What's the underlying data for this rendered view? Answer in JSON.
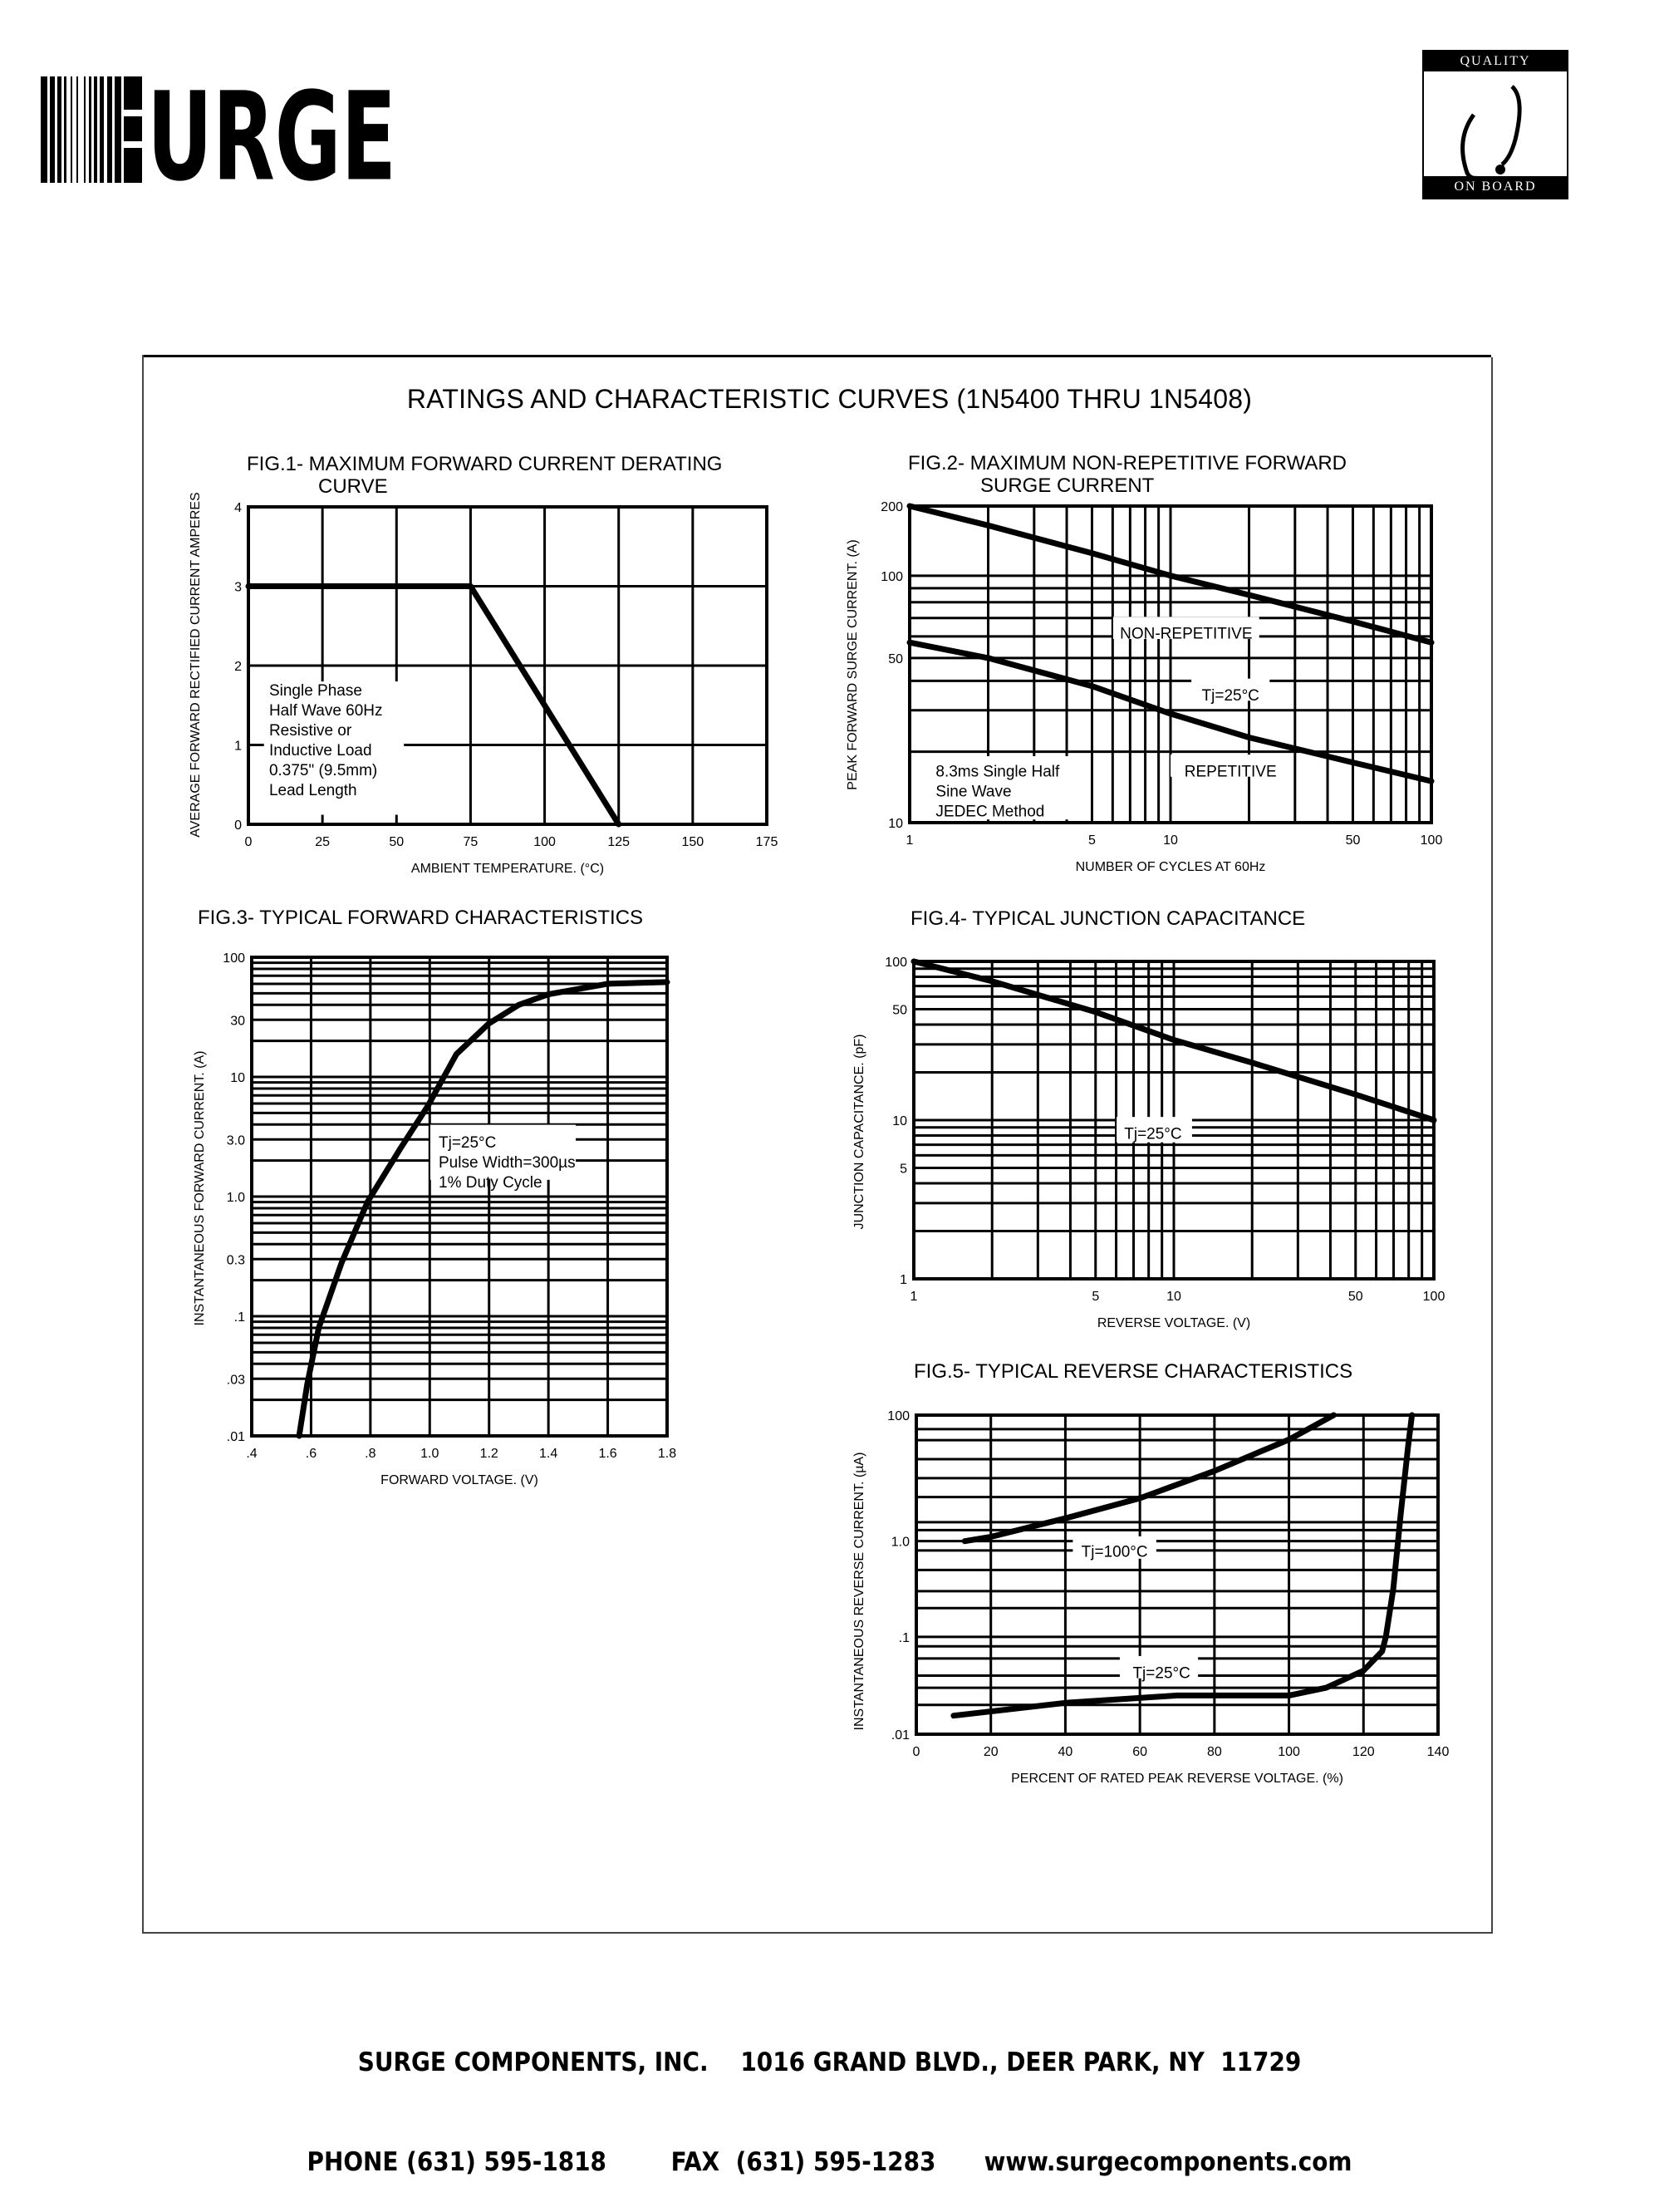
{
  "header": {
    "logo_text": "SURGE",
    "badge": {
      "top": "QUALITY",
      "bottom": "ON BOARD"
    }
  },
  "title": "RATINGS AND CHARACTERISTIC CURVES (1N5400 THRU 1N5408)",
  "footer": {
    "company": "SURGE COMPONENTS, INC.",
    "address": "1016 GRAND BLVD., DEER PARK, NY  11729",
    "phone": "PHONE (631) 595-1818",
    "fax": "FAX  (631) 595-1283",
    "web": "www.surgecomponents.com"
  },
  "chart_data": [
    {
      "type": "line",
      "title_lines": [
        "FIG.1- MAXIMUM FORWARD CURRENT DERATING",
        "CURVE"
      ],
      "xlabel": "AMBIENT TEMPERATURE. (°C)",
      "ylabel": "AVERAGE FORWARD RECTIFIED CURRENT AMPERES",
      "x_scale": "linear",
      "xlim": [
        0,
        175
      ],
      "x_ticks": [
        0,
        25,
        50,
        75,
        100,
        125,
        150,
        175
      ],
      "x_tick_labels": [
        "0",
        "25",
        "50",
        "75",
        "100",
        "125",
        "150",
        "175"
      ],
      "y_scale": "linear",
      "ylim": [
        0,
        4
      ],
      "y_ticks": [
        0,
        1,
        2,
        3,
        4
      ],
      "y_tick_labels": [
        "0",
        "1",
        "2",
        "3",
        "4"
      ],
      "grid": true,
      "series": [
        {
          "x": [
            0,
            75,
            125
          ],
          "y": [
            3,
            3,
            0
          ]
        }
      ],
      "annotations": [
        {
          "lines": [
            "Single Phase",
            "Half Wave 60Hz",
            "Resistive or",
            "Inductive Load",
            "0.375\" (9.5mm)",
            "Lead Length"
          ]
        }
      ]
    },
    {
      "type": "line",
      "title_lines": [
        "FIG.2- MAXIMUM NON-REPETITIVE FORWARD",
        "SURGE CURRENT"
      ],
      "xlabel": "NUMBER OF CYCLES AT 60Hz",
      "ylabel": "PEAK FORWARD SURGE CURRENT. (A)",
      "x_scale": "log",
      "xlim": [
        1,
        100
      ],
      "x_ticks": [
        1,
        5,
        10,
        50,
        100
      ],
      "x_tick_labels": [
        "1",
        "5",
        "10",
        "50",
        "100"
      ],
      "y_scale": "log",
      "ylim": [
        10,
        200
      ],
      "y_ticks": [
        10,
        50,
        100,
        200
      ],
      "y_tick_labels": [
        "10",
        "50",
        "100",
        "200"
      ],
      "grid": true,
      "series": [
        {
          "x": [
            1,
            2,
            5,
            10,
            20,
            50,
            100
          ],
          "y": [
            200,
            165,
            125,
            100,
            85,
            68,
            57
          ]
        },
        {
          "x": [
            1,
            2,
            5,
            10,
            20,
            50,
            100
          ],
          "y": [
            57,
            50,
            38,
            29,
            23,
            18,
            15
          ]
        }
      ],
      "annotations": [
        {
          "lines": [
            "NON-REPETITIVE"
          ]
        },
        {
          "lines": [
            "Tj=25°C"
          ]
        },
        {
          "lines": [
            "REPETITIVE"
          ]
        },
        {
          "lines": [
            "8.3ms Single Half",
            "Sine Wave",
            "JEDEC Method"
          ]
        }
      ]
    },
    {
      "type": "line",
      "title_lines": [
        "FIG.3- TYPICAL FORWARD CHARACTERISTICS"
      ],
      "xlabel": "FORWARD VOLTAGE. (V)",
      "ylabel": "INSTANTANEOUS FORWARD CURRENT. (A)",
      "x_scale": "linear",
      "xlim": [
        0.4,
        1.8
      ],
      "x_ticks": [
        0.4,
        0.6,
        0.8,
        1.0,
        1.2,
        1.4,
        1.6,
        1.8
      ],
      "x_tick_labels": [
        ".4",
        ".6",
        ".8",
        "1.0",
        "1.2",
        "1.4",
        "1.6",
        "1.8"
      ],
      "y_scale": "log",
      "ylim": [
        0.01,
        100
      ],
      "y_ticks": [
        100,
        30,
        10,
        3,
        1,
        0.3,
        0.1,
        0.03,
        0.01
      ],
      "y_tick_labels": [
        "100",
        "30",
        "10",
        "3.0",
        "1.0",
        "0.3",
        ".1",
        ".03",
        ".01"
      ],
      "grid": true,
      "series": [
        {
          "x": [
            0.56,
            0.587,
            0.626,
            0.703,
            0.79,
            0.9,
            0.995,
            1.09,
            1.2,
            1.3,
            1.4,
            1.6,
            1.8
          ],
          "y": [
            0.01,
            0.027,
            0.08,
            0.28,
            0.9,
            2.5,
            5.8,
            15.5,
            28,
            40,
            49,
            60,
            62
          ]
        }
      ],
      "annotations": [
        {
          "lines": [
            "Tj=25°C",
            "Pulse Width=300µs",
            "1% Duty Cycle"
          ]
        }
      ]
    },
    {
      "type": "line",
      "title_lines": [
        "FIG.4- TYPICAL JUNCTION CAPACITANCE"
      ],
      "xlabel": "REVERSE VOLTAGE. (V)",
      "ylabel": "JUNCTION CAPACITANCE. (pF)",
      "x_scale": "log",
      "xlim": [
        1,
        100
      ],
      "x_ticks": [
        1,
        5,
        10,
        50,
        100
      ],
      "x_tick_labels": [
        "1",
        "5",
        "10",
        "50",
        "100"
      ],
      "y_scale": "log",
      "ylim": [
        1,
        100
      ],
      "y_ticks": [
        1,
        5,
        10,
        50,
        100
      ],
      "y_tick_labels": [
        "1",
        "5",
        "10",
        "50",
        "100"
      ],
      "grid": true,
      "series": [
        {
          "x": [
            1,
            2,
            5,
            10,
            20,
            50,
            100
          ],
          "y": [
            100,
            75,
            48,
            32,
            23,
            14.5,
            10
          ]
        }
      ],
      "annotations": [
        {
          "lines": [
            "Tj=25°C"
          ]
        }
      ]
    },
    {
      "type": "line",
      "title_lines": [
        "FIG.5- TYPICAL REVERSE CHARACTERISTICS"
      ],
      "xlabel": "PERCENT OF RATED PEAK REVERSE VOLTAGE. (%)",
      "ylabel": "INSTANTANEOUS REVERSE CURRENT. (µA)",
      "x_scale": "linear",
      "xlim": [
        0,
        140
      ],
      "x_ticks": [
        0,
        20,
        40,
        60,
        80,
        100,
        120,
        140
      ],
      "x_tick_labels": [
        "0",
        "20",
        "40",
        "60",
        "80",
        "100",
        "120",
        "140"
      ],
      "y_scale": "log",
      "ylim": [
        0.01,
        100
      ],
      "y_ticks": [
        0.01,
        0.1,
        1,
        100
      ],
      "y_tick_labels": [
        ".01",
        ".1",
        "1.0",
        "100"
      ],
      "grid": true,
      "series": [
        {
          "name": "Tj=100°C",
          "x": [
            13,
            20,
            40,
            60,
            80,
            100,
            112
          ],
          "y": [
            1.0,
            1.17,
            2.3,
            4.8,
            13,
            41,
            100
          ]
        },
        {
          "name": "Tj=25°C",
          "x": [
            10,
            40,
            70,
            100,
            110,
            120,
            125,
            126,
            128,
            130,
            132,
            133
          ],
          "y": [
            0.0155,
            0.021,
            0.025,
            0.025,
            0.03,
            0.045,
            0.071,
            0.1,
            0.32,
            2.7,
            33,
            100
          ]
        }
      ],
      "annotations": [
        {
          "lines": [
            "Tj=100°C"
          ]
        },
        {
          "lines": [
            "Tj=25°C"
          ]
        }
      ]
    }
  ]
}
